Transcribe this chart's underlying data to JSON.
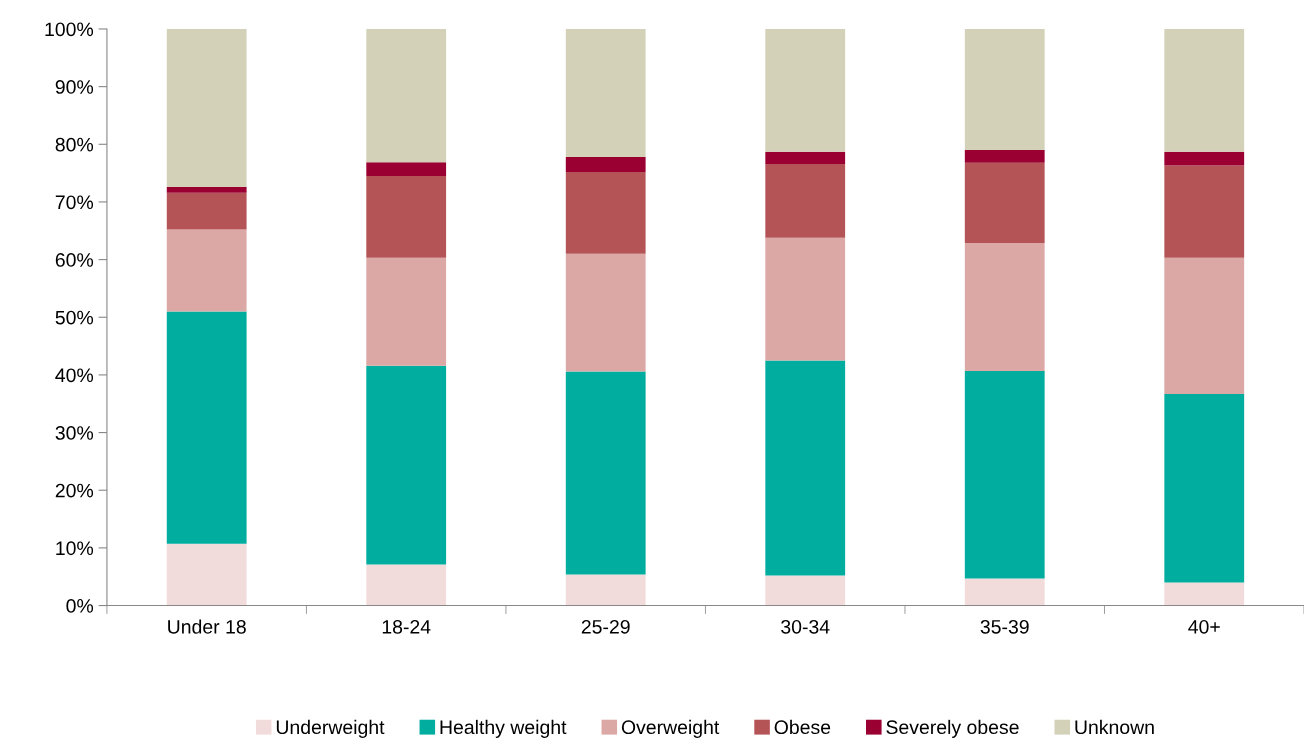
{
  "chart_data": {
    "type": "bar",
    "stacked": true,
    "categories": [
      "Under 18",
      "18-24",
      "25-29",
      "30-34",
      "35-39",
      "40+"
    ],
    "series": [
      {
        "name": "Underweight",
        "color": "#f2dcdb",
        "values": [
          10.7,
          7.1,
          5.4,
          5.2,
          4.7,
          4.0
        ]
      },
      {
        "name": "Healthy weight",
        "color": "#00ad9f",
        "values": [
          40.3,
          34.5,
          35.2,
          37.3,
          36.0,
          32.7
        ]
      },
      {
        "name": "Overweight",
        "color": "#dca8a5",
        "values": [
          14.2,
          18.7,
          20.4,
          21.3,
          22.2,
          23.6
        ]
      },
      {
        "name": "Obese",
        "color": "#b55457",
        "values": [
          6.4,
          14.2,
          14.2,
          12.8,
          13.9,
          16.0
        ]
      },
      {
        "name": "Severely obese",
        "color": "#9b0032",
        "values": [
          1.0,
          2.4,
          2.6,
          2.1,
          2.2,
          2.4
        ]
      },
      {
        "name": "Unknown",
        "color": "#d3d2b8",
        "values": [
          27.4,
          23.1,
          22.2,
          21.3,
          21.0,
          21.3
        ]
      }
    ],
    "ylim": [
      0,
      100
    ],
    "yticks": [
      {
        "value": 0,
        "label": "0%"
      },
      {
        "value": 10,
        "label": "10%"
      },
      {
        "value": 20,
        "label": "20%"
      },
      {
        "value": 30,
        "label": "30%"
      },
      {
        "value": 40,
        "label": "40%"
      },
      {
        "value": 50,
        "label": "50%"
      },
      {
        "value": 60,
        "label": "60%"
      },
      {
        "value": 70,
        "label": "70%"
      },
      {
        "value": 80,
        "label": "80%"
      },
      {
        "value": 90,
        "label": "90%"
      },
      {
        "value": 100,
        "label": "100%"
      }
    ],
    "grid": false,
    "legend": "bottom"
  }
}
